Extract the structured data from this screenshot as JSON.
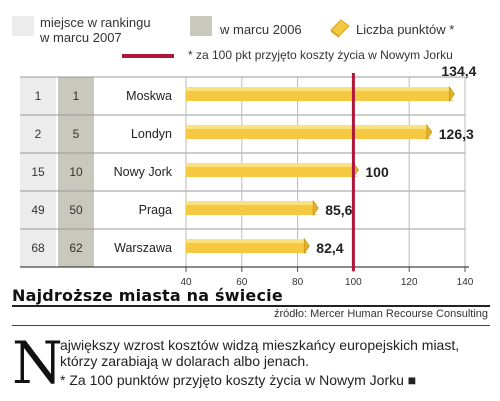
{
  "legend": {
    "rank_2007": {
      "label": "miejsce w rankingu\nw marcu 2007",
      "color": "#ececec"
    },
    "rank_2006": {
      "label": "w marcu 2006",
      "color": "#c8c8bd"
    },
    "points": {
      "label": "Liczba punktów *",
      "color": "#f5c842"
    },
    "reference": {
      "label": "* za 100 pkt przyjęto koszty życia w Nowym Jorku",
      "color": "#b0153a"
    }
  },
  "chart_data": {
    "type": "bar",
    "orientation": "horizontal",
    "categories": [
      "Moskwa",
      "Londyn",
      "Nowy Jork",
      "Praga",
      "Warszawa"
    ],
    "values": [
      134.4,
      126.3,
      100,
      85.6,
      82.4
    ],
    "value_labels": [
      "134,4",
      "126,3",
      "100",
      "85,6",
      "82,4"
    ],
    "rank_2007": [
      "1",
      "2",
      "15",
      "49",
      "68"
    ],
    "rank_2006": [
      "1",
      "5",
      "10",
      "50",
      "62"
    ],
    "xlim": [
      40,
      140
    ],
    "xticks": [
      "40",
      "60",
      "80",
      "100",
      "120",
      "140"
    ],
    "reference_value": 100,
    "grid": true
  },
  "title": "Najdroższe miasta na świecie",
  "source": "źródło: Mercer Human Recourse Consulting",
  "dropcap": "N",
  "body": "ajwiększy wzrost kosztów widzą mieszkańcy europejskich miast, którzy zarabiają w dolarach albo jenach.",
  "footnote": "* Za 100 punktów przyjęto koszty życia w Nowym Jorku ■"
}
